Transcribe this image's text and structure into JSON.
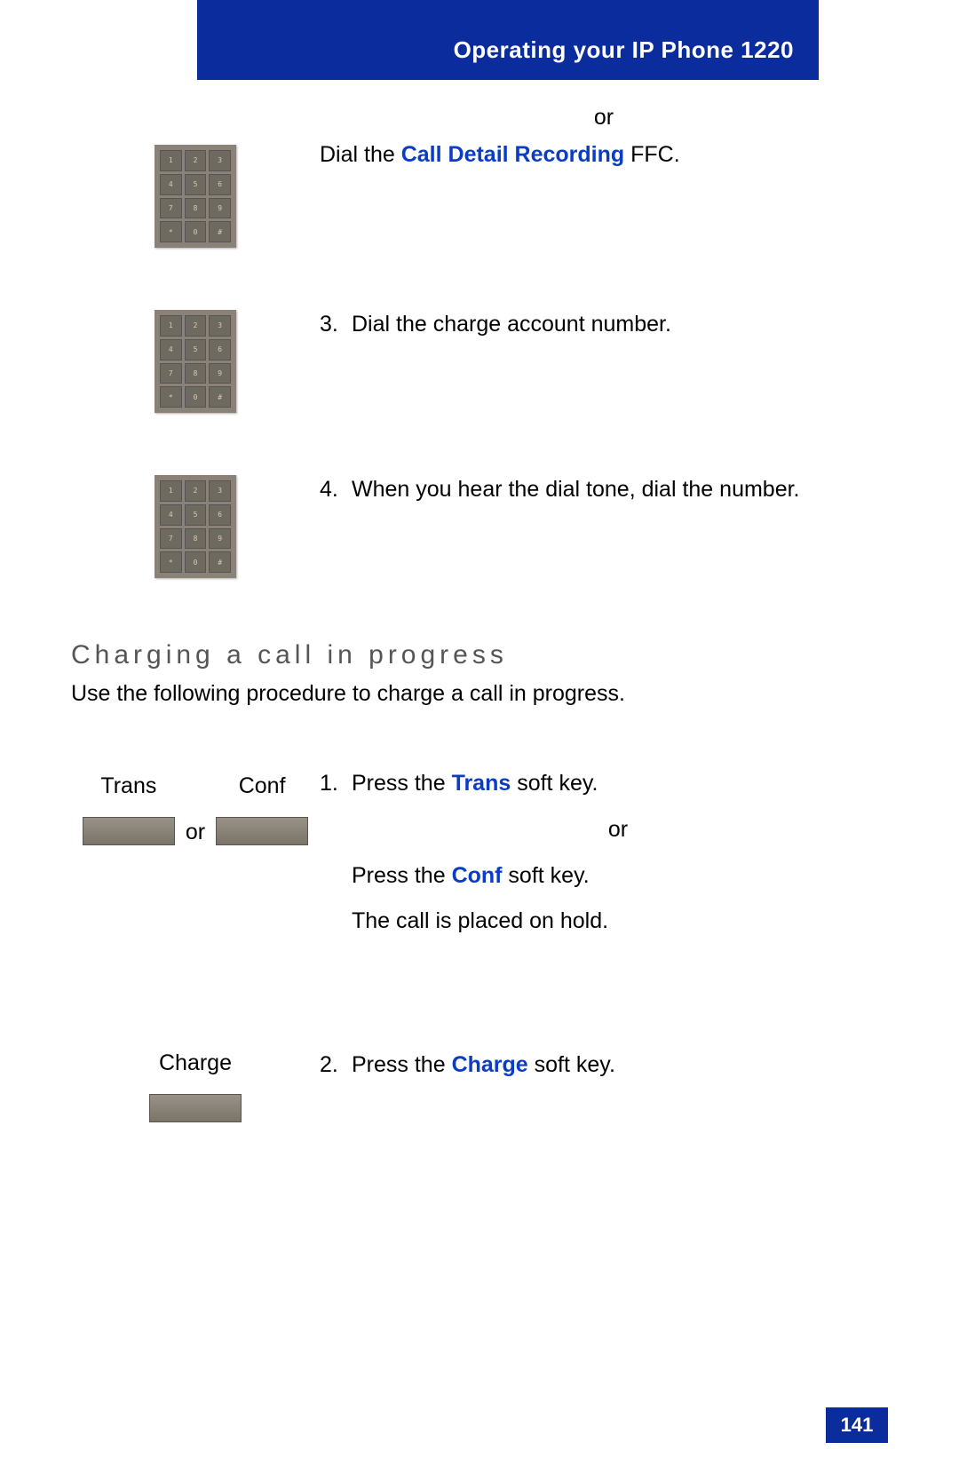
{
  "header": {
    "title": "Operating your IP Phone 1220",
    "bg_color": "#0a2c9c",
    "text_color": "#ffffff"
  },
  "link_color": "#0a3cc4",
  "step_or": "or",
  "step_dial_prefix": "Dial the ",
  "step_dial_link": "Call Detail Recording",
  "step_dial_suffix": " FFC.",
  "step3_num": "3.",
  "step3_text": "Dial the charge account number.",
  "step4_num": "4.",
  "step4_text": "When you hear the dial tone, dial the number.",
  "section": {
    "title": "Charging a call in progress",
    "subtitle": "Use the following procedure to charge a call in progress."
  },
  "softkeys": {
    "trans": "Trans",
    "conf": "Conf",
    "or": "or",
    "charge": "Charge"
  },
  "proc1": {
    "num": "1.",
    "line1_prefix": "Press the ",
    "line1_link": "Trans",
    "line1_suffix": " soft key.",
    "or": "or",
    "line2_prefix": "Press the ",
    "line2_link": "Conf",
    "line2_suffix": " soft key.",
    "line3": "The call is placed on hold."
  },
  "proc2": {
    "num": "2.",
    "prefix": "Press the ",
    "link": "Charge",
    "suffix": " soft key."
  },
  "keypad_keys": [
    "1",
    "2",
    "3",
    "4",
    "5",
    "6",
    "7",
    "8",
    "9",
    "*",
    "0",
    "#"
  ],
  "page_number": "141"
}
